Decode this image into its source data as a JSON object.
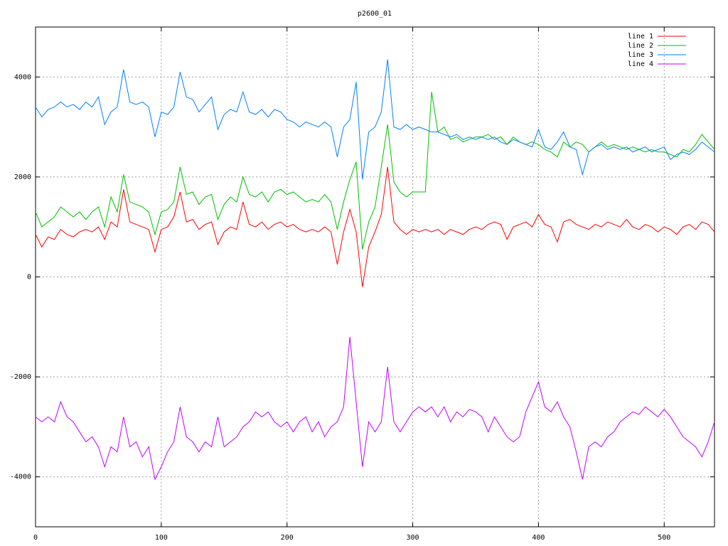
{
  "chart_data": {
    "type": "line",
    "title": "p2600_01",
    "x": [
      0,
      5,
      10,
      15,
      20,
      25,
      30,
      35,
      40,
      45,
      50,
      55,
      60,
      65,
      70,
      75,
      80,
      85,
      90,
      95,
      100,
      105,
      110,
      115,
      120,
      125,
      130,
      135,
      140,
      145,
      150,
      155,
      160,
      165,
      170,
      175,
      180,
      185,
      190,
      195,
      200,
      205,
      210,
      215,
      220,
      225,
      230,
      235,
      240,
      245,
      250,
      255,
      260,
      265,
      270,
      275,
      280,
      285,
      290,
      295,
      300,
      305,
      310,
      315,
      320,
      325,
      330,
      335,
      340,
      345,
      350,
      355,
      360,
      365,
      370,
      375,
      380,
      385,
      390,
      395,
      400,
      405,
      410,
      415,
      420,
      425,
      430,
      435,
      440,
      445,
      450,
      455,
      460,
      465,
      470,
      475,
      480,
      485,
      490,
      495,
      500,
      505,
      510,
      515,
      520,
      525,
      530,
      535,
      540
    ],
    "series": [
      {
        "name": "line 1",
        "color": "#ff0000",
        "values": [
          850,
          600,
          800,
          750,
          950,
          850,
          800,
          900,
          950,
          900,
          1000,
          750,
          1100,
          1000,
          1750,
          1100,
          1050,
          1000,
          950,
          500,
          950,
          1000,
          1200,
          1700,
          1100,
          1150,
          950,
          1050,
          1100,
          650,
          900,
          1000,
          950,
          1500,
          1050,
          1000,
          1100,
          950,
          1050,
          1100,
          1000,
          1050,
          950,
          900,
          950,
          900,
          1000,
          900,
          250,
          900,
          1350,
          900,
          -200,
          600,
          900,
          1250,
          2200,
          1100,
          950,
          850,
          950,
          900,
          950,
          900,
          950,
          850,
          950,
          900,
          850,
          950,
          1000,
          950,
          1050,
          1100,
          1050,
          750,
          1000,
          1050,
          1100,
          1000,
          1250,
          1050,
          1000,
          700,
          1100,
          1150,
          1050,
          1000,
          950,
          1050,
          1000,
          1100,
          1050,
          1000,
          1150,
          1000,
          950,
          1050,
          1000,
          900,
          1000,
          950,
          850,
          1000,
          1050,
          950,
          1100,
          1050,
          900
        ]
      },
      {
        "name": "line 2",
        "color": "#00c000",
        "values": [
          1300,
          1000,
          1100,
          1200,
          1400,
          1300,
          1200,
          1300,
          1150,
          1300,
          1400,
          1000,
          1600,
          1300,
          2050,
          1500,
          1450,
          1400,
          1300,
          850,
          1300,
          1350,
          1500,
          2200,
          1650,
          1700,
          1450,
          1600,
          1650,
          1150,
          1450,
          1600,
          1500,
          2000,
          1650,
          1600,
          1700,
          1500,
          1700,
          1750,
          1650,
          1700,
          1600,
          1500,
          1550,
          1500,
          1650,
          1500,
          950,
          1500,
          1950,
          2300,
          550,
          1100,
          1400,
          2200,
          3050,
          1900,
          1700,
          1600,
          1700,
          1700,
          1700,
          3700,
          2900,
          3000,
          2750,
          2800,
          2700,
          2750,
          2800,
          2800,
          2850,
          2750,
          2800,
          2650,
          2800,
          2700,
          2650,
          2700,
          2650,
          2550,
          2500,
          2400,
          2700,
          2600,
          2700,
          2650,
          2500,
          2600,
          2700,
          2600,
          2650,
          2600,
          2550,
          2600,
          2550,
          2500,
          2550,
          2500,
          2500,
          2450,
          2400,
          2550,
          2500,
          2650,
          2850,
          2700,
          2550
        ]
      },
      {
        "name": "line 3",
        "color": "#0080ff",
        "values": [
          3400,
          3200,
          3350,
          3400,
          3500,
          3400,
          3450,
          3350,
          3500,
          3400,
          3600,
          3050,
          3300,
          3400,
          4150,
          3500,
          3450,
          3500,
          3400,
          2800,
          3300,
          3250,
          3400,
          4100,
          3600,
          3550,
          3300,
          3450,
          3600,
          2950,
          3250,
          3350,
          3300,
          3700,
          3300,
          3250,
          3350,
          3200,
          3350,
          3300,
          3150,
          3100,
          3000,
          3100,
          3050,
          3000,
          3100,
          3000,
          2400,
          3000,
          3150,
          3900,
          1950,
          2900,
          3000,
          3300,
          4350,
          3000,
          2950,
          3050,
          2950,
          3000,
          2950,
          2900,
          2900,
          2850,
          2800,
          2850,
          2750,
          2800,
          2750,
          2800,
          2750,
          2800,
          2700,
          2650,
          2750,
          2700,
          2650,
          2600,
          2950,
          2600,
          2550,
          2700,
          2900,
          2600,
          2550,
          2050,
          2500,
          2600,
          2650,
          2550,
          2600,
          2550,
          2600,
          2500,
          2550,
          2600,
          2500,
          2550,
          2600,
          2350,
          2450,
          2500,
          2450,
          2550,
          2700,
          2600,
          2500
        ]
      },
      {
        "name": "line 4",
        "color": "#c000ff",
        "values": [
          -2800,
          -2900,
          -2800,
          -2900,
          -2500,
          -2800,
          -2900,
          -3100,
          -3300,
          -3200,
          -3400,
          -3800,
          -3400,
          -3500,
          -2800,
          -3400,
          -3300,
          -3600,
          -3400,
          -4050,
          -3800,
          -3500,
          -3300,
          -2600,
          -3200,
          -3300,
          -3500,
          -3300,
          -3400,
          -2800,
          -3400,
          -3300,
          -3200,
          -3000,
          -2900,
          -2700,
          -2800,
          -2700,
          -2900,
          -3000,
          -2900,
          -3100,
          -2900,
          -2800,
          -3100,
          -2900,
          -3200,
          -3000,
          -2900,
          -2600,
          -1200,
          -2500,
          -3800,
          -2900,
          -3100,
          -2900,
          -1800,
          -2900,
          -3100,
          -2900,
          -2700,
          -2600,
          -2700,
          -2600,
          -2800,
          -2600,
          -2900,
          -2700,
          -2800,
          -2650,
          -2700,
          -2800,
          -3100,
          -2800,
          -3000,
          -3200,
          -3300,
          -3200,
          -2700,
          -2400,
          -2100,
          -2600,
          -2700,
          -2500,
          -2800,
          -3000,
          -3500,
          -4050,
          -3400,
          -3300,
          -3400,
          -3200,
          -3100,
          -2900,
          -2800,
          -2700,
          -2750,
          -2600,
          -2700,
          -2800,
          -2650,
          -2800,
          -3000,
          -3200,
          -3300,
          -3400,
          -3600,
          -3300,
          -2900
        ]
      }
    ],
    "xlim": [
      0,
      540
    ],
    "xticks": [
      0,
      100,
      200,
      300,
      400,
      500
    ],
    "ylim": [
      -5000,
      5000
    ],
    "yticks": [
      -4000,
      -2000,
      0,
      2000,
      4000
    ],
    "grid": true,
    "legend": "top-right"
  }
}
